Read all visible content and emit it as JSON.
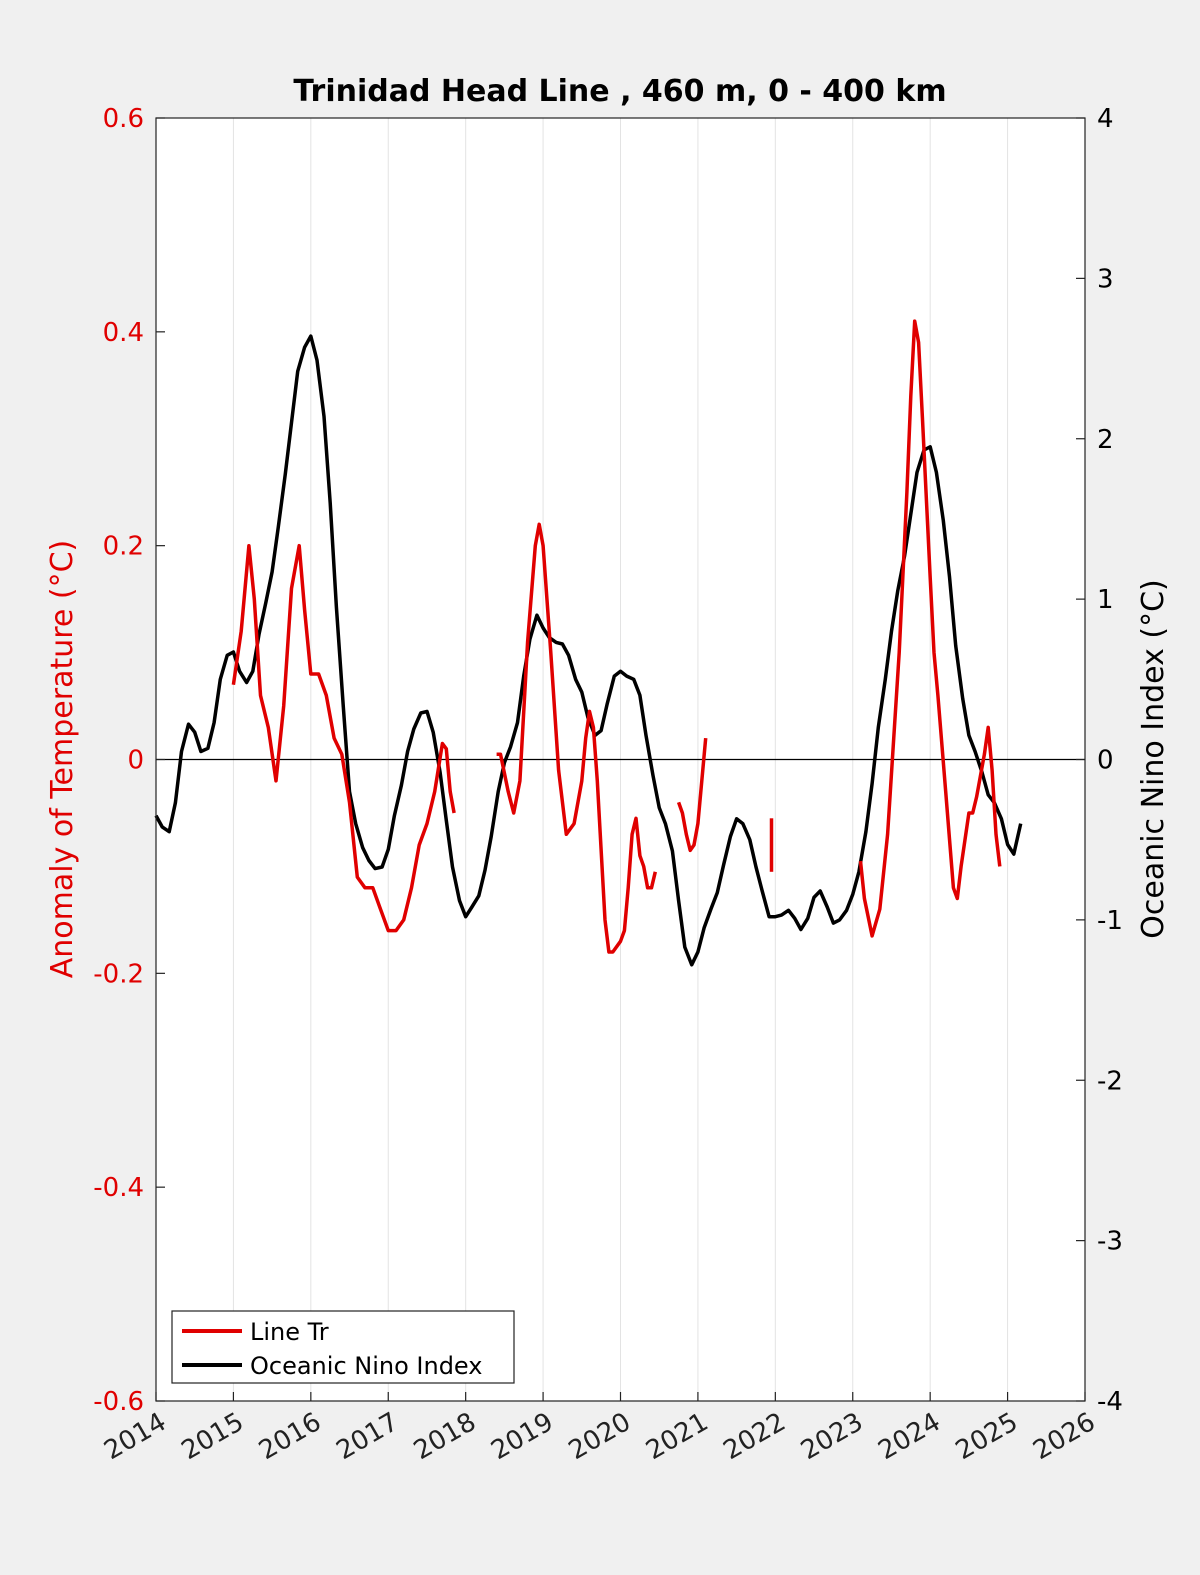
{
  "chart_data": {
    "type": "line",
    "title": "Trinidad Head Line , 460 m, 0 - 400 km",
    "xlabel": "",
    "ylabel_left": "Anomaly of Temperature (°C)",
    "ylabel_right": "Oceanic Nino Index (°C)",
    "xlim": [
      2014,
      2026
    ],
    "ylim_left": [
      -0.6,
      0.6
    ],
    "ylim_right": [
      -4,
      4
    ],
    "x_ticks": [
      "2014",
      "2015",
      "2016",
      "2017",
      "2018",
      "2019",
      "2020",
      "2021",
      "2022",
      "2023",
      "2024",
      "2025",
      "2026"
    ],
    "y_ticks_left": [
      "0.6",
      "0.4",
      "0.2",
      "0",
      "-0.2",
      "-0.4",
      "-0.6"
    ],
    "y_ticks_right": [
      "4",
      "3",
      "2",
      "1",
      "0",
      "-1",
      "-2",
      "-3",
      "-4"
    ],
    "grid": "vertical",
    "legend_position": "bottom-left",
    "colors": {
      "line_tr": "#e00000",
      "oni": "#000000",
      "left_axis": "#e00000"
    },
    "series": [
      {
        "name": "Line Tr",
        "axis": "left",
        "segments": [
          [
            [
              2015.0,
              0.07
            ],
            [
              2015.1,
              0.12
            ],
            [
              2015.2,
              0.2
            ],
            [
              2015.27,
              0.15
            ],
            [
              2015.35,
              0.06
            ],
            [
              2015.45,
              0.03
            ],
            [
              2015.55,
              -0.02
            ],
            [
              2015.65,
              0.05
            ],
            [
              2015.75,
              0.16
            ],
            [
              2015.85,
              0.2
            ],
            [
              2015.92,
              0.14
            ],
            [
              2016.0,
              0.08
            ],
            [
              2016.1,
              0.08
            ],
            [
              2016.2,
              0.06
            ],
            [
              2016.3,
              0.02
            ],
            [
              2016.4,
              0.005
            ],
            [
              2016.5,
              -0.04
            ],
            [
              2016.6,
              -0.11
            ],
            [
              2016.7,
              -0.12
            ],
            [
              2016.8,
              -0.12
            ],
            [
              2016.9,
              -0.14
            ],
            [
              2017.0,
              -0.16
            ],
            [
              2017.1,
              -0.16
            ],
            [
              2017.2,
              -0.15
            ],
            [
              2017.3,
              -0.12
            ],
            [
              2017.4,
              -0.08
            ],
            [
              2017.5,
              -0.06
            ],
            [
              2017.6,
              -0.03
            ],
            [
              2017.7,
              0.015
            ],
            [
              2017.75,
              0.01
            ],
            [
              2017.8,
              -0.03
            ],
            [
              2017.85,
              -0.05
            ]
          ],
          [
            [
              2018.4,
              0.005
            ],
            [
              2018.45,
              0.005
            ],
            [
              2018.55,
              -0.03
            ],
            [
              2018.62,
              -0.05
            ],
            [
              2018.7,
              -0.02
            ],
            [
              2018.8,
              0.11
            ],
            [
              2018.9,
              0.2
            ],
            [
              2018.95,
              0.22
            ],
            [
              2019.0,
              0.2
            ],
            [
              2019.1,
              0.1
            ],
            [
              2019.2,
              -0.01
            ],
            [
              2019.3,
              -0.07
            ],
            [
              2019.4,
              -0.06
            ],
            [
              2019.5,
              -0.02
            ],
            [
              2019.55,
              0.02
            ],
            [
              2019.6,
              0.045
            ],
            [
              2019.65,
              0.03
            ],
            [
              2019.7,
              -0.02
            ],
            [
              2019.8,
              -0.15
            ],
            [
              2019.85,
              -0.18
            ],
            [
              2019.9,
              -0.18
            ],
            [
              2020.0,
              -0.17
            ],
            [
              2020.05,
              -0.16
            ],
            [
              2020.1,
              -0.12
            ],
            [
              2020.15,
              -0.07
            ],
            [
              2020.2,
              -0.055
            ],
            [
              2020.25,
              -0.09
            ],
            [
              2020.3,
              -0.1
            ],
            [
              2020.35,
              -0.12
            ],
            [
              2020.4,
              -0.12
            ],
            [
              2020.45,
              -0.105
            ]
          ],
          [
            [
              2020.75,
              -0.04
            ],
            [
              2020.8,
              -0.05
            ],
            [
              2020.85,
              -0.07
            ],
            [
              2020.9,
              -0.085
            ],
            [
              2020.95,
              -0.08
            ],
            [
              2021.0,
              -0.06
            ],
            [
              2021.05,
              -0.02
            ],
            [
              2021.1,
              0.02
            ]
          ],
          [
            [
              2021.95,
              -0.055
            ],
            [
              2021.95,
              -0.105
            ]
          ],
          [
            [
              2023.1,
              -0.095
            ],
            [
              2023.15,
              -0.13
            ],
            [
              2023.25,
              -0.165
            ],
            [
              2023.35,
              -0.14
            ],
            [
              2023.45,
              -0.07
            ],
            [
              2023.6,
              0.1
            ],
            [
              2023.7,
              0.25
            ],
            [
              2023.75,
              0.34
            ],
            [
              2023.8,
              0.41
            ],
            [
              2023.85,
              0.39
            ],
            [
              2023.9,
              0.32
            ],
            [
              2024.0,
              0.17
            ],
            [
              2024.05,
              0.1
            ],
            [
              2024.1,
              0.06
            ],
            [
              2024.2,
              -0.03
            ],
            [
              2024.3,
              -0.12
            ],
            [
              2024.35,
              -0.13
            ],
            [
              2024.4,
              -0.1
            ],
            [
              2024.5,
              -0.05
            ],
            [
              2024.55,
              -0.05
            ],
            [
              2024.6,
              -0.035
            ],
            [
              2024.7,
              0.005
            ],
            [
              2024.75,
              0.03
            ],
            [
              2024.8,
              -0.01
            ],
            [
              2024.85,
              -0.07
            ],
            [
              2024.9,
              -0.1
            ]
          ]
        ]
      },
      {
        "name": "Oceanic Nino Index",
        "axis": "right",
        "points": [
          [
            2014.0,
            -0.35
          ],
          [
            2014.08,
            -0.42
          ],
          [
            2014.17,
            -0.45
          ],
          [
            2014.25,
            -0.27
          ],
          [
            2014.33,
            0.05
          ],
          [
            2014.42,
            0.22
          ],
          [
            2014.5,
            0.17
          ],
          [
            2014.58,
            0.05
          ],
          [
            2014.67,
            0.07
          ],
          [
            2014.75,
            0.23
          ],
          [
            2014.83,
            0.5
          ],
          [
            2014.92,
            0.65
          ],
          [
            2015.0,
            0.67
          ],
          [
            2015.08,
            0.55
          ],
          [
            2015.17,
            0.48
          ],
          [
            2015.25,
            0.55
          ],
          [
            2015.33,
            0.78
          ],
          [
            2015.42,
            0.98
          ],
          [
            2015.5,
            1.17
          ],
          [
            2015.58,
            1.45
          ],
          [
            2015.67,
            1.78
          ],
          [
            2015.75,
            2.1
          ],
          [
            2015.83,
            2.42
          ],
          [
            2015.92,
            2.57
          ],
          [
            2016.0,
            2.64
          ],
          [
            2016.08,
            2.49
          ],
          [
            2016.17,
            2.14
          ],
          [
            2016.25,
            1.6
          ],
          [
            2016.33,
            0.95
          ],
          [
            2016.42,
            0.33
          ],
          [
            2016.5,
            -0.2
          ],
          [
            2016.58,
            -0.4
          ],
          [
            2016.67,
            -0.55
          ],
          [
            2016.75,
            -0.63
          ],
          [
            2016.83,
            -0.68
          ],
          [
            2016.92,
            -0.67
          ],
          [
            2017.0,
            -0.56
          ],
          [
            2017.08,
            -0.35
          ],
          [
            2017.17,
            -0.16
          ],
          [
            2017.25,
            0.05
          ],
          [
            2017.33,
            0.19
          ],
          [
            2017.42,
            0.29
          ],
          [
            2017.5,
            0.3
          ],
          [
            2017.58,
            0.17
          ],
          [
            2017.67,
            -0.08
          ],
          [
            2017.75,
            -0.38
          ],
          [
            2017.83,
            -0.67
          ],
          [
            2017.92,
            -0.88
          ],
          [
            2018.0,
            -0.98
          ],
          [
            2018.08,
            -0.92
          ],
          [
            2018.17,
            -0.85
          ],
          [
            2018.25,
            -0.69
          ],
          [
            2018.33,
            -0.48
          ],
          [
            2018.42,
            -0.2
          ],
          [
            2018.5,
            -0.02
          ],
          [
            2018.58,
            0.08
          ],
          [
            2018.67,
            0.23
          ],
          [
            2018.75,
            0.52
          ],
          [
            2018.83,
            0.75
          ],
          [
            2018.92,
            0.9
          ],
          [
            2019.0,
            0.82
          ],
          [
            2019.08,
            0.76
          ],
          [
            2019.17,
            0.73
          ],
          [
            2019.25,
            0.72
          ],
          [
            2019.33,
            0.65
          ],
          [
            2019.42,
            0.5
          ],
          [
            2019.5,
            0.42
          ],
          [
            2019.58,
            0.26
          ],
          [
            2019.67,
            0.15
          ],
          [
            2019.75,
            0.18
          ],
          [
            2019.83,
            0.35
          ],
          [
            2019.92,
            0.52
          ],
          [
            2020.0,
            0.55
          ],
          [
            2020.08,
            0.52
          ],
          [
            2020.17,
            0.5
          ],
          [
            2020.25,
            0.4
          ],
          [
            2020.33,
            0.15
          ],
          [
            2020.42,
            -0.1
          ],
          [
            2020.5,
            -0.3
          ],
          [
            2020.58,
            -0.4
          ],
          [
            2020.67,
            -0.57
          ],
          [
            2020.75,
            -0.88
          ],
          [
            2020.83,
            -1.17
          ],
          [
            2020.92,
            -1.28
          ],
          [
            2021.0,
            -1.2
          ],
          [
            2021.08,
            -1.05
          ],
          [
            2021.17,
            -0.93
          ],
          [
            2021.25,
            -0.83
          ],
          [
            2021.33,
            -0.66
          ],
          [
            2021.42,
            -0.48
          ],
          [
            2021.5,
            -0.37
          ],
          [
            2021.58,
            -0.4
          ],
          [
            2021.67,
            -0.5
          ],
          [
            2021.75,
            -0.67
          ],
          [
            2021.83,
            -0.82
          ],
          [
            2021.92,
            -0.98
          ],
          [
            2022.0,
            -0.98
          ],
          [
            2022.08,
            -0.97
          ],
          [
            2022.17,
            -0.94
          ],
          [
            2022.25,
            -0.99
          ],
          [
            2022.33,
            -1.06
          ],
          [
            2022.42,
            -0.99
          ],
          [
            2022.5,
            -0.86
          ],
          [
            2022.58,
            -0.82
          ],
          [
            2022.67,
            -0.92
          ],
          [
            2022.75,
            -1.02
          ],
          [
            2022.83,
            -1.0
          ],
          [
            2022.92,
            -0.94
          ],
          [
            2023.0,
            -0.84
          ],
          [
            2023.08,
            -0.7
          ],
          [
            2023.17,
            -0.45
          ],
          [
            2023.25,
            -0.15
          ],
          [
            2023.33,
            0.2
          ],
          [
            2023.42,
            0.5
          ],
          [
            2023.5,
            0.8
          ],
          [
            2023.58,
            1.05
          ],
          [
            2023.67,
            1.27
          ],
          [
            2023.75,
            1.53
          ],
          [
            2023.83,
            1.79
          ],
          [
            2023.92,
            1.93
          ],
          [
            2024.0,
            1.95
          ],
          [
            2024.08,
            1.79
          ],
          [
            2024.17,
            1.49
          ],
          [
            2024.25,
            1.14
          ],
          [
            2024.33,
            0.71
          ],
          [
            2024.42,
            0.38
          ],
          [
            2024.5,
            0.15
          ],
          [
            2024.58,
            0.05
          ],
          [
            2024.67,
            -0.08
          ],
          [
            2024.75,
            -0.22
          ],
          [
            2024.83,
            -0.27
          ],
          [
            2024.92,
            -0.37
          ],
          [
            2025.0,
            -0.53
          ],
          [
            2025.08,
            -0.59
          ],
          [
            2025.17,
            -0.4
          ]
        ]
      }
    ]
  }
}
